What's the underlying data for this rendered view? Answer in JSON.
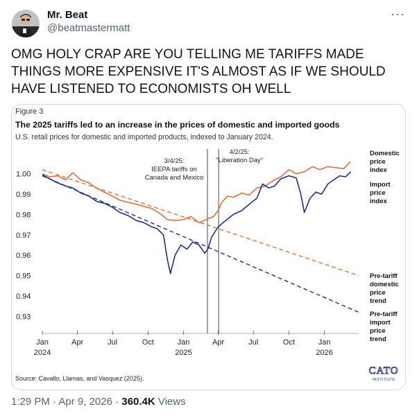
{
  "author": {
    "display_name": "Mr. Beat",
    "handle": "@beatmastermatt",
    "more_icon": "ellipsis-icon"
  },
  "tweet": {
    "text": "OMG HOLY CRAP ARE YOU TELLING ME TARIFFS MADE THINGS MORE EXPENSIVE IT'S ALMOST AS IF WE SHOULD HAVE LISTENED TO ECONOMISTS OH WELL"
  },
  "meta": {
    "time": "1:29 PM",
    "separator": "·",
    "date": "Apr 9, 2026",
    "views_count": "360.4K",
    "views_label": "Views"
  },
  "chart_data": {
    "type": "line",
    "figure_label": "Figure 3",
    "title": "The 2025 tariffs led to an increase in the prices of domestic and imported goods",
    "subtitle": "U.S. retail prices for domestic and imported products, indexed to January 2024.",
    "source": "Source: Cavallo, Llamas, and Vasquez (2025).",
    "logo_text": "CATO INSTITUTE",
    "ylim": [
      0.925,
      1.005
    ],
    "yticks": [
      1.0,
      0.99,
      0.98,
      0.97,
      0.96,
      0.95,
      0.94,
      0.93
    ],
    "ytick_labels": [
      "1.00",
      "0.99",
      "0.98",
      "0.97",
      "0.96",
      "0.95",
      "0.94",
      "0.93"
    ],
    "xlim": [
      "2024-01-01",
      "2026-03-31"
    ],
    "xticks": [
      {
        "date": "2024-01-01",
        "label": "Jan",
        "year": "2024"
      },
      {
        "date": "2024-04-01",
        "label": "Apr",
        "year": ""
      },
      {
        "date": "2024-07-01",
        "label": "Jul",
        "year": ""
      },
      {
        "date": "2024-10-01",
        "label": "Oct",
        "year": ""
      },
      {
        "date": "2025-01-01",
        "label": "Jan",
        "year": "2025"
      },
      {
        "date": "2025-04-01",
        "label": "Apr",
        "year": ""
      },
      {
        "date": "2025-07-01",
        "label": "Jul",
        "year": ""
      },
      {
        "date": "2025-10-01",
        "label": "Oct",
        "year": ""
      },
      {
        "date": "2026-01-01",
        "label": "Jan",
        "year": "2026"
      }
    ],
    "events": [
      {
        "date": "2025-03-04",
        "label": [
          "3/4/25:",
          "IEEPA tariffs on",
          "Canada and Mexico"
        ]
      },
      {
        "date": "2025-04-02",
        "label": [
          "4/2/25:",
          "\"Liberation Day\""
        ]
      }
    ],
    "series": [
      {
        "name": "Domestic price index",
        "label_lines": [
          "Domestic",
          "price",
          "index"
        ],
        "color": "#e06f36",
        "style": "solid",
        "points": [
          [
            "2024-01-01",
            1.0
          ],
          [
            "2024-01-20",
            0.9985
          ],
          [
            "2024-02-10",
            0.999
          ],
          [
            "2024-03-01",
            0.997
          ],
          [
            "2024-03-20",
            1.0005
          ],
          [
            "2024-04-10",
            0.997
          ],
          [
            "2024-05-01",
            0.9955
          ],
          [
            "2024-05-20",
            0.993
          ],
          [
            "2024-06-10",
            0.991
          ],
          [
            "2024-07-01",
            0.989
          ],
          [
            "2024-07-20",
            0.987
          ],
          [
            "2024-08-10",
            0.986
          ],
          [
            "2024-09-01",
            0.985
          ],
          [
            "2024-09-20",
            0.984
          ],
          [
            "2024-10-10",
            0.983
          ],
          [
            "2024-11-01",
            0.9805
          ],
          [
            "2024-11-20",
            0.9775
          ],
          [
            "2024-12-10",
            0.977
          ],
          [
            "2025-01-01",
            0.9775
          ],
          [
            "2025-01-20",
            0.979
          ],
          [
            "2025-02-10",
            0.976
          ],
          [
            "2025-03-01",
            0.9775
          ],
          [
            "2025-03-20",
            0.979
          ],
          [
            "2025-04-01",
            0.982
          ],
          [
            "2025-04-10",
            0.986
          ],
          [
            "2025-04-25",
            0.989
          ],
          [
            "2025-05-10",
            0.9885
          ],
          [
            "2025-06-01",
            0.9905
          ],
          [
            "2025-06-20",
            0.9895
          ],
          [
            "2025-07-10",
            0.993
          ],
          [
            "2025-08-01",
            0.994
          ],
          [
            "2025-08-20",
            0.9965
          ],
          [
            "2025-09-10",
            0.9985
          ],
          [
            "2025-10-01",
            1.002
          ],
          [
            "2025-10-20",
            1.0
          ],
          [
            "2025-11-10",
            1.001
          ],
          [
            "2025-12-01",
            1.0035
          ],
          [
            "2025-12-20",
            1.002
          ],
          [
            "2026-01-10",
            1.0035
          ],
          [
            "2026-02-01",
            1.003
          ],
          [
            "2026-02-20",
            1.0025
          ],
          [
            "2026-03-10",
            1.006
          ]
        ]
      },
      {
        "name": "Import price index",
        "label_lines": [
          "Import",
          "price",
          "index"
        ],
        "color": "#1f2d8c",
        "style": "solid",
        "points": [
          [
            "2024-01-01",
            0.9995
          ],
          [
            "2024-01-20",
            0.9975
          ],
          [
            "2024-02-10",
            0.9955
          ],
          [
            "2024-03-01",
            0.994
          ],
          [
            "2024-03-20",
            0.993
          ],
          [
            "2024-04-10",
            0.9905
          ],
          [
            "2024-05-01",
            0.989
          ],
          [
            "2024-05-20",
            0.9865
          ],
          [
            "2024-06-10",
            0.9855
          ],
          [
            "2024-07-01",
            0.9835
          ],
          [
            "2024-07-20",
            0.981
          ],
          [
            "2024-08-10",
            0.9795
          ],
          [
            "2024-09-01",
            0.977
          ],
          [
            "2024-09-20",
            0.976
          ],
          [
            "2024-10-10",
            0.974
          ],
          [
            "2024-10-25",
            0.973
          ],
          [
            "2024-11-10",
            0.97
          ],
          [
            "2024-11-20",
            0.958
          ],
          [
            "2024-11-28",
            0.951
          ],
          [
            "2024-12-10",
            0.96
          ],
          [
            "2024-12-25",
            0.965
          ],
          [
            "2025-01-10",
            0.963
          ],
          [
            "2025-01-25",
            0.9665
          ],
          [
            "2025-02-10",
            0.965
          ],
          [
            "2025-02-25",
            0.961
          ],
          [
            "2025-03-05",
            0.963
          ],
          [
            "2025-03-15",
            0.969
          ],
          [
            "2025-04-01",
            0.974
          ],
          [
            "2025-04-20",
            0.977
          ],
          [
            "2025-05-10",
            0.98
          ],
          [
            "2025-06-01",
            0.982
          ],
          [
            "2025-06-20",
            0.985
          ],
          [
            "2025-07-10",
            0.988
          ],
          [
            "2025-07-25",
            0.995
          ],
          [
            "2025-08-10",
            0.993
          ],
          [
            "2025-08-25",
            0.994
          ],
          [
            "2025-09-10",
            0.9975
          ],
          [
            "2025-10-01",
            0.999
          ],
          [
            "2025-10-20",
            0.998
          ],
          [
            "2025-11-01",
            0.99
          ],
          [
            "2025-11-10",
            0.981
          ],
          [
            "2025-11-25",
            0.988
          ],
          [
            "2025-12-10",
            0.991
          ],
          [
            "2025-12-25",
            0.99
          ],
          [
            "2026-01-10",
            0.995
          ],
          [
            "2026-01-25",
            0.997
          ],
          [
            "2026-02-10",
            0.999
          ],
          [
            "2026-02-25",
            0.9985
          ],
          [
            "2026-03-10",
            1.001
          ]
        ]
      },
      {
        "name": "Pre-tariff domestic price trend",
        "label_lines": [
          "Pre-tariff",
          "domestic",
          "price",
          "trend"
        ],
        "color": "#e06f36",
        "style": "dashed",
        "points": [
          [
            "2024-01-01",
            1.002
          ],
          [
            "2026-03-31",
            0.95
          ]
        ]
      },
      {
        "name": "Pre-tariff import price trend",
        "label_lines": [
          "Pre-tariff",
          "import",
          "price",
          "trend"
        ],
        "color": "#1f2d8c",
        "style": "dashed",
        "points": [
          [
            "2024-01-01",
            0.999
          ],
          [
            "2026-03-31",
            0.932
          ]
        ]
      }
    ]
  }
}
